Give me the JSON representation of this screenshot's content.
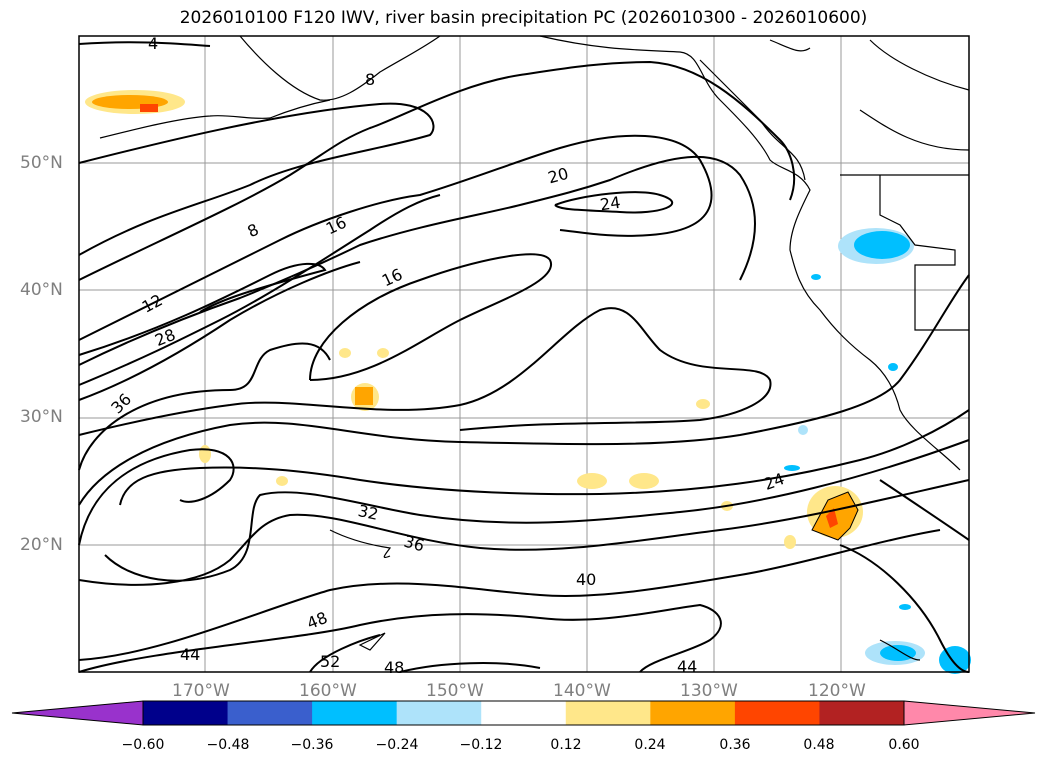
{
  "title": "2026010100 F120 IWV, river basin precipitation PC (2026010300 - 2026010600)",
  "lat_labels": [
    "50°N",
    "40°N",
    "30°N",
    "20°N"
  ],
  "lon_labels": [
    "170°W",
    "160°W",
    "150°W",
    "140°W",
    "130°W",
    "120°W"
  ],
  "contour_labels": [
    "4",
    "8",
    "8",
    "12",
    "16",
    "16",
    "20",
    "24",
    "24",
    "28",
    "32",
    "36",
    "36",
    "40",
    "44",
    "44",
    "48",
    "48",
    "52"
  ],
  "colorbar": {
    "ticks": [
      "−0.60",
      "−0.48",
      "−0.36",
      "−0.24",
      "−0.12",
      "0.12",
      "0.24",
      "0.36",
      "0.48",
      "0.60"
    ],
    "colors": [
      "#9932cc",
      "#00008b",
      "#3a5fcd",
      "#00bfff",
      "#aee3fa",
      "#ffffff",
      "#ffe78a",
      "#ffa500",
      "#ff4500",
      "#b22222",
      "#ff88aa"
    ]
  }
}
